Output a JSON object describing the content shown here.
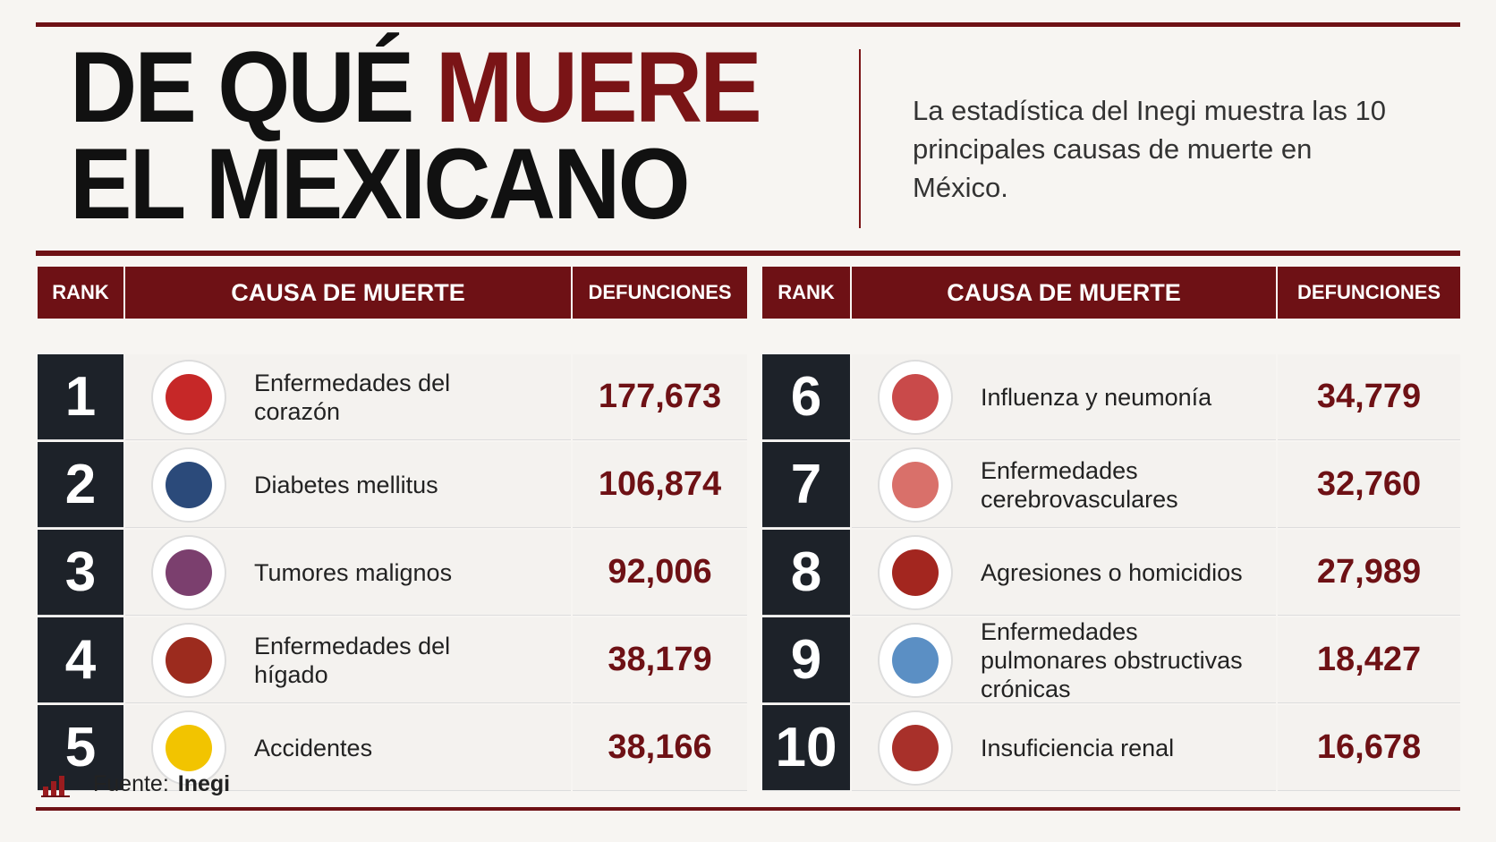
{
  "header": {
    "title_parts": [
      "DE QUÉ",
      "MUERE",
      "EL MEXICANO"
    ],
    "subtitle": "La estadística del Inegi muestra las 10 principales causas de muerte en México."
  },
  "tables": [
    {
      "columns": [
        "RANK",
        "CAUSA DE MUERTE",
        "DEFUNCIONES"
      ],
      "rows": [
        [
          "1",
          "Enfermedades del corazón",
          "177,673"
        ],
        [
          "2",
          "Diabetes mellitus",
          "106,874"
        ],
        [
          "3",
          "Tumores malignos",
          "92,006"
        ],
        [
          "4",
          "Enfermedades del hígado",
          "38,179"
        ],
        [
          "5",
          "Accidentes",
          "38,166"
        ]
      ]
    },
    {
      "columns": [
        "RANK",
        "CAUSA DE MUERTE",
        "DEFUNCIONES"
      ],
      "rows": [
        [
          "6",
          "Influenza y neumonía",
          "34,779"
        ],
        [
          "7",
          "Enfermedades cerebrovasculares",
          "32,760"
        ],
        [
          "8",
          "Agresiones o homicidios",
          "27,989"
        ],
        [
          "9",
          "Enfermedades pulmonares obstructivas crónicas",
          "18,427"
        ],
        [
          "10",
          "Insuficiencia renal",
          "16,678"
        ]
      ]
    }
  ],
  "footer": {
    "label": "Fuente:",
    "source": "Inegi"
  }
}
